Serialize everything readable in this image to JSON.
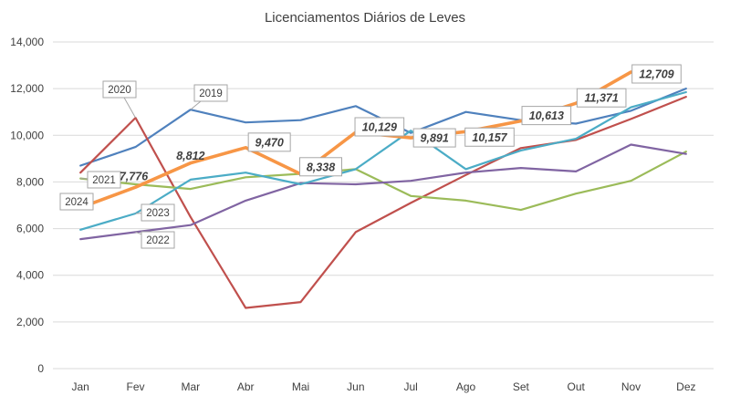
{
  "chart_data": {
    "type": "line",
    "title": "Licenciamentos Diários de Leves",
    "xlabel": "",
    "ylabel": "",
    "ylim": [
      0,
      14000
    ],
    "yticks": [
      0,
      2000,
      4000,
      6000,
      8000,
      10000,
      12000,
      14000
    ],
    "ytick_labels": [
      "0",
      "2,000",
      "4,000",
      "6,000",
      "8,000",
      "10,000",
      "12,000",
      "14,000"
    ],
    "grid": true,
    "categories": [
      "Jan",
      "Fev",
      "Mar",
      "Abr",
      "Mai",
      "Jun",
      "Jul",
      "Ago",
      "Set",
      "Out",
      "Nov",
      "Dez"
    ],
    "series": [
      {
        "name": "2019",
        "color": "#4f81bd",
        "values": [
          8700,
          9500,
          11100,
          10550,
          10650,
          11250,
          10100,
          11000,
          10650,
          10500,
          11050,
          12000
        ]
      },
      {
        "name": "2020",
        "color": "#c0504d",
        "values": [
          8400,
          10750,
          6500,
          2600,
          2850,
          5850,
          7100,
          8300,
          9450,
          9800,
          10700,
          11650
        ]
      },
      {
        "name": "2021",
        "color": "#9bbb59",
        "values": [
          8150,
          7900,
          7700,
          8200,
          8350,
          8550,
          7400,
          7200,
          6800,
          7500,
          8050,
          9300
        ]
      },
      {
        "name": "2022",
        "color": "#8064a2",
        "values": [
          5550,
          5850,
          6150,
          7200,
          7950,
          7900,
          8050,
          8400,
          8600,
          8450,
          9600,
          9200
        ]
      },
      {
        "name": "2023",
        "color": "#4bacc6",
        "values": [
          5950,
          6650,
          8100,
          8400,
          7900,
          8550,
          10200,
          8550,
          9350,
          9850,
          11200,
          11850
        ]
      },
      {
        "name": "2024",
        "color": "#f79646",
        "values": [
          6900,
          7776,
          8812,
          9470,
          8338,
          10129,
          9891,
          10157,
          10613,
          11371,
          12709,
          null
        ]
      }
    ],
    "data_labels": [
      "7,776",
      "8,812",
      "9,470",
      "8,338",
      "10,129",
      "9,891",
      "10,157",
      "10,613",
      "11,371",
      "12,709"
    ]
  }
}
